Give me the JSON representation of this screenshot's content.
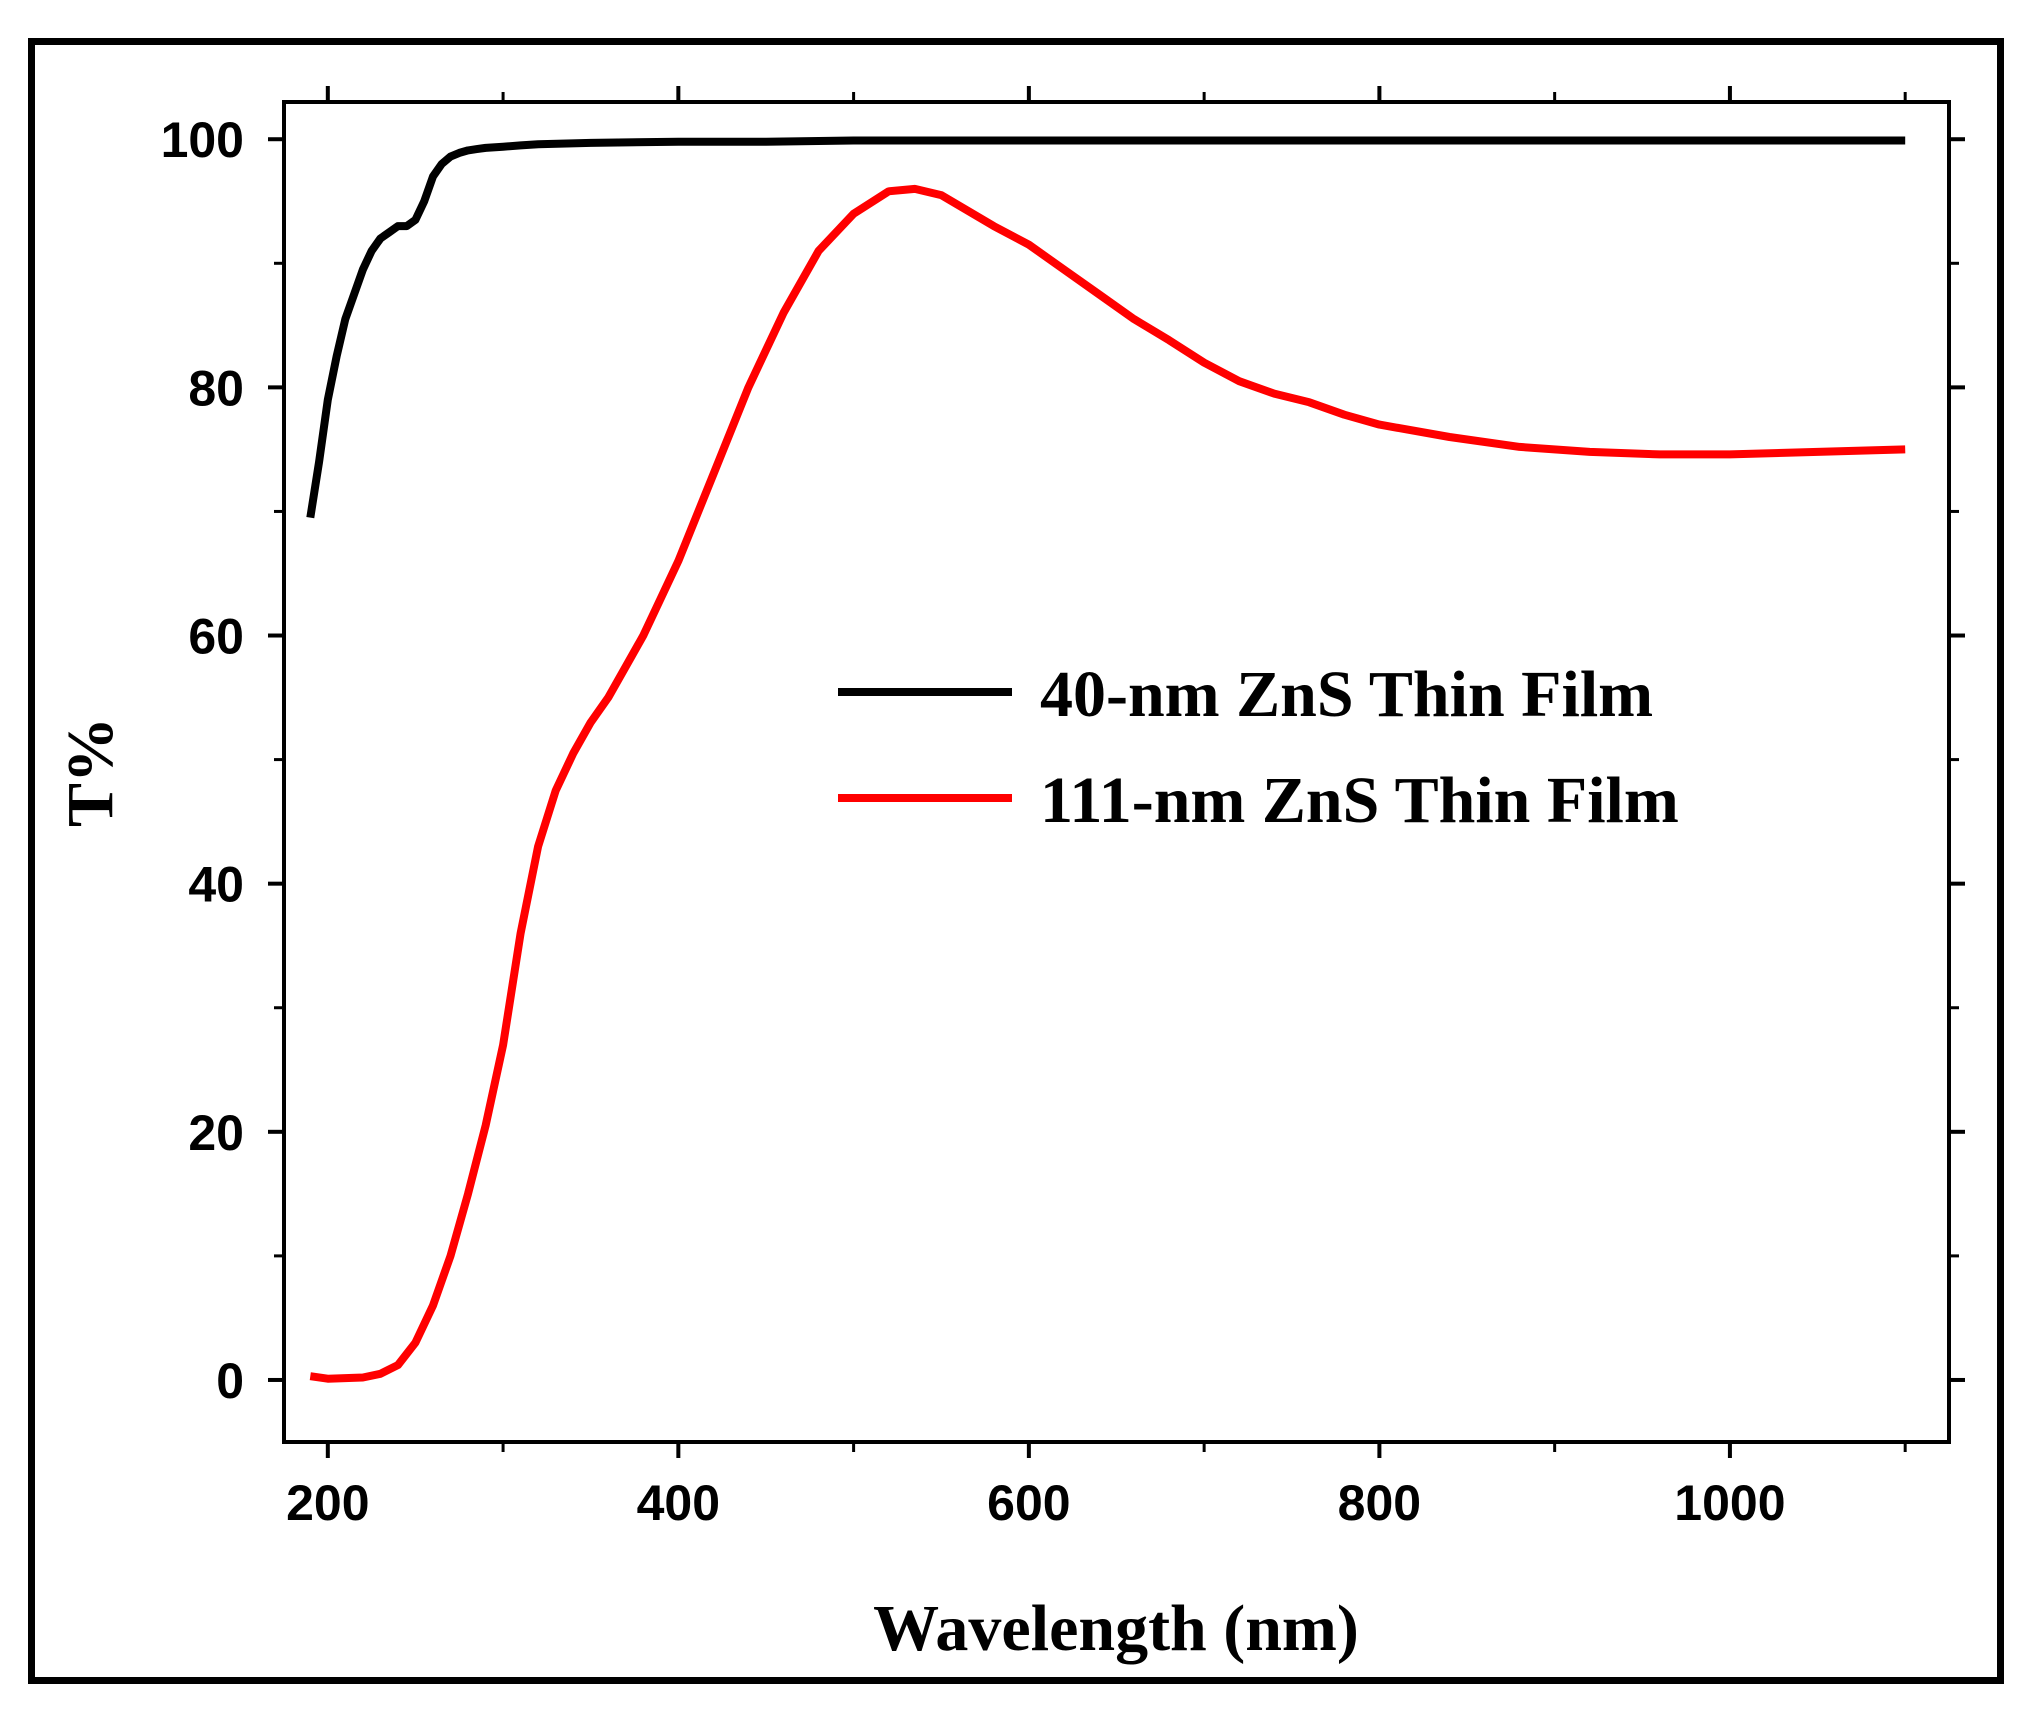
{
  "chart_data": {
    "type": "line",
    "title": "",
    "xlabel": "Wavelength (nm)",
    "ylabel": "T%",
    "xlim": [
      175,
      1125
    ],
    "ylim": [
      -5,
      103
    ],
    "xticks": [
      200,
      400,
      600,
      800,
      1000
    ],
    "xtick_labels": [
      "200",
      "400",
      "600",
      "800",
      "1000"
    ],
    "xminor": [
      300,
      500,
      700,
      900,
      1100
    ],
    "yticks": [
      0,
      20,
      40,
      60,
      80,
      100
    ],
    "ytick_labels": [
      "0",
      "20",
      "40",
      "60",
      "80",
      "100"
    ],
    "yminor": [
      10,
      30,
      50,
      70,
      90
    ],
    "grid": false,
    "legend_position": "center-right",
    "series": [
      {
        "name": "40-nm ZnS Thin Film",
        "color": "#000000",
        "x": [
          190,
          195,
          200,
          205,
          210,
          215,
          220,
          225,
          230,
          235,
          240,
          245,
          250,
          255,
          260,
          265,
          270,
          275,
          280,
          285,
          290,
          300,
          310,
          320,
          350,
          400,
          450,
          500,
          600,
          700,
          800,
          900,
          1000,
          1100
        ],
        "y": [
          69.5,
          74,
          79,
          82.5,
          85.5,
          87.5,
          89.5,
          91,
          92,
          92.5,
          93,
          93,
          93.5,
          95,
          97,
          98,
          98.6,
          98.9,
          99.1,
          99.2,
          99.3,
          99.4,
          99.5,
          99.6,
          99.7,
          99.8,
          99.8,
          99.9,
          99.9,
          99.9,
          99.9,
          99.9,
          99.9,
          99.9
        ]
      },
      {
        "name": "111-nm ZnS Thin Film",
        "color": "#ff0000",
        "x": [
          190,
          200,
          220,
          230,
          240,
          250,
          260,
          270,
          280,
          290,
          300,
          310,
          320,
          330,
          340,
          350,
          360,
          370,
          380,
          390,
          400,
          420,
          440,
          460,
          480,
          500,
          520,
          535,
          550,
          580,
          600,
          620,
          640,
          660,
          680,
          700,
          720,
          740,
          760,
          780,
          800,
          840,
          880,
          920,
          960,
          1000,
          1050,
          1100
        ],
        "y": [
          0.3,
          0.1,
          0.2,
          0.5,
          1.2,
          3,
          6,
          10,
          15,
          20.5,
          27,
          36,
          43,
          47.5,
          50.5,
          53,
          55,
          57.5,
          60,
          63,
          66,
          73,
          80,
          86,
          91,
          94,
          95.8,
          96,
          95.5,
          93,
          91.5,
          89.5,
          87.5,
          85.5,
          83.8,
          82,
          80.5,
          79.5,
          78.8,
          77.8,
          77,
          76,
          75.2,
          74.8,
          74.6,
          74.6,
          74.8,
          75
        ]
      }
    ]
  }
}
